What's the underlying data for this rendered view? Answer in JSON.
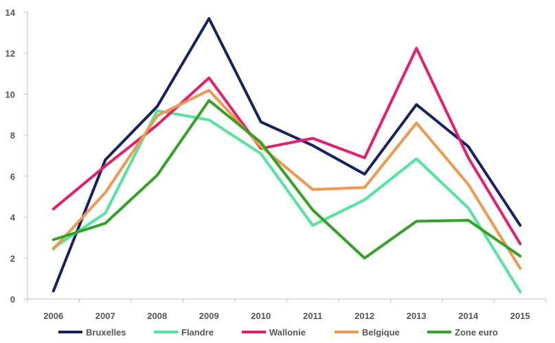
{
  "chart_data": {
    "type": "line",
    "title": "",
    "xlabel": "",
    "ylabel": "",
    "x": [
      "2006",
      "2007",
      "2008",
      "2009",
      "2010",
      "2011",
      "2012",
      "2013",
      "2014",
      "2015"
    ],
    "ylim": [
      0,
      14
    ],
    "yticks": [
      "0",
      "2",
      "4",
      "6",
      "8",
      "10",
      "12",
      "14"
    ],
    "grid": false,
    "legend_position": "bottom",
    "series": [
      {
        "name": "Bruxelles",
        "color": "#152066",
        "values": [
          0.4,
          6.8,
          9.4,
          13.7,
          8.65,
          7.5,
          6.1,
          9.5,
          7.45,
          3.6
        ]
      },
      {
        "name": "Flandre",
        "color": "#4DE89C",
        "values": [
          2.5,
          4.2,
          9.2,
          8.75,
          7.1,
          3.6,
          4.85,
          6.85,
          4.45,
          0.35
        ]
      },
      {
        "name": "Wallonie",
        "color": "#F0186A",
        "values": [
          4.4,
          6.5,
          8.5,
          10.8,
          7.35,
          7.85,
          6.9,
          12.25,
          6.9,
          2.7
        ]
      },
      {
        "name": "Belgique",
        "color": "#F5964A",
        "values": [
          2.45,
          5.2,
          8.95,
          10.2,
          7.45,
          5.35,
          5.45,
          8.6,
          5.6,
          1.5
        ]
      },
      {
        "name": "Zone euro",
        "color": "#2DA520",
        "values": [
          2.9,
          3.7,
          6.05,
          9.7,
          7.65,
          4.35,
          2.0,
          3.8,
          3.85,
          2.1
        ]
      }
    ]
  }
}
